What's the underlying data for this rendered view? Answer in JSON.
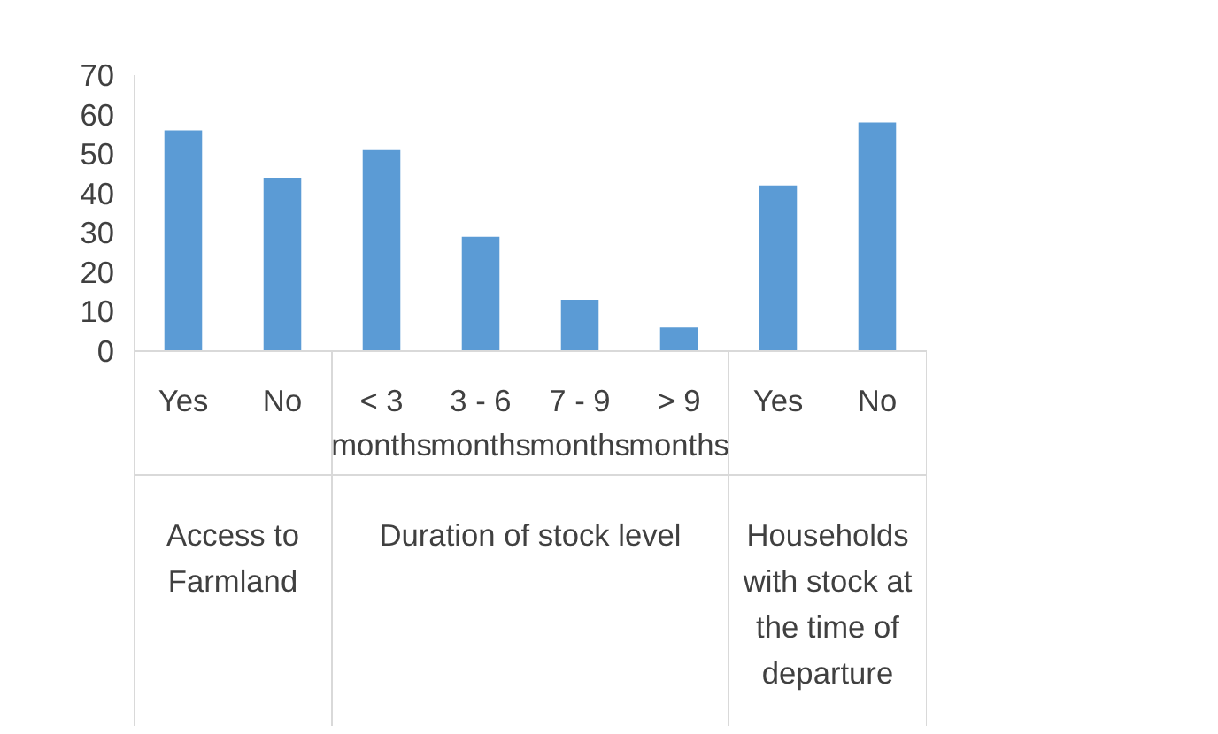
{
  "chart_data": {
    "type": "bar",
    "categories": [
      "Yes",
      "No",
      "< 3 months",
      "3 - 6 months",
      "7 - 9 months",
      "> 9 months",
      "Yes",
      "No"
    ],
    "values": [
      56,
      44,
      51,
      29,
      13,
      6,
      42,
      58
    ],
    "color": "#5b9bd5",
    "ylim": [
      0,
      70
    ],
    "yticks": [
      0,
      10,
      20,
      30,
      40,
      50,
      60,
      70
    ],
    "grid": false,
    "annotations": [
      "Access to Farmland",
      "Duration of stock level",
      "Households with stock at the time of departure"
    ]
  }
}
